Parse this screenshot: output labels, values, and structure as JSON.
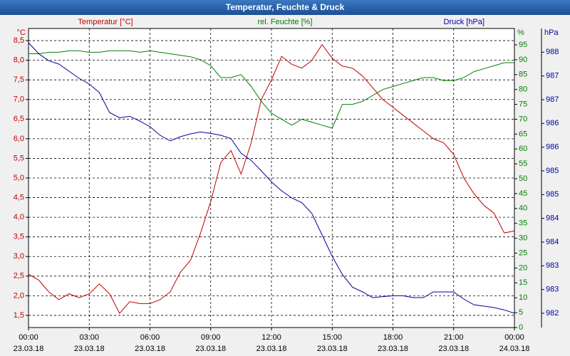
{
  "chart_data": {
    "type": "line",
    "title": "Temperatur, Feuchte & Druck",
    "x": [
      0,
      0.5,
      1,
      1.5,
      2,
      2.5,
      3,
      3.5,
      4,
      4.5,
      5,
      5.5,
      6,
      6.5,
      7,
      7.5,
      8,
      8.5,
      9,
      9.5,
      10,
      10.5,
      11,
      11.5,
      12,
      12.5,
      13,
      13.5,
      14,
      14.5,
      15,
      15.5,
      16,
      16.5,
      17,
      17.5,
      18,
      18.5,
      19,
      19.5,
      20,
      20.5,
      21,
      21.5,
      22,
      22.5,
      23,
      23.5,
      24
    ],
    "xlim": [
      0,
      24
    ],
    "xticks": [
      {
        "value": 0,
        "label": "00:00"
      },
      {
        "value": 3,
        "label": "03:00"
      },
      {
        "value": 6,
        "label": "06:00"
      },
      {
        "value": 9,
        "label": "09:00"
      },
      {
        "value": 12,
        "label": "12:00"
      },
      {
        "value": 15,
        "label": "15:00"
      },
      {
        "value": 18,
        "label": "18:00"
      },
      {
        "value": 21,
        "label": "21:00"
      },
      {
        "value": 24,
        "label": "00:00"
      }
    ],
    "xtick_dates": [
      "23.03.18",
      "23.03.18",
      "23.03.18",
      "23.03.18",
      "23.03.18",
      "23.03.18",
      "23.03.18",
      "23.03.18",
      "24.03.18"
    ],
    "ylim": [
      1.19,
      8.81
    ],
    "yticks": [
      {
        "value": 1.5,
        "label": "1,5"
      },
      {
        "value": 2,
        "label": "2,0"
      },
      {
        "value": 2.5,
        "label": "2,5"
      },
      {
        "value": 3,
        "label": "3,0"
      },
      {
        "value": 3.5,
        "label": "3,5"
      },
      {
        "value": 4,
        "label": "4,0"
      },
      {
        "value": 4.5,
        "label": "4,5"
      },
      {
        "value": 5,
        "label": "5,0"
      },
      {
        "value": 5.5,
        "label": "5,5"
      },
      {
        "value": 6,
        "label": "6,0"
      },
      {
        "value": 6.5,
        "label": "6,5"
      },
      {
        "value": 7,
        "label": "7,0"
      },
      {
        "value": 7.5,
        "label": "7,5"
      },
      {
        "value": 8,
        "label": "8,0"
      },
      {
        "value": 8.5,
        "label": "8,5"
      }
    ],
    "y_unit": "°C",
    "y2lim": [
      0,
      100.5
    ],
    "y2ticks": [
      0,
      5,
      10,
      15,
      20,
      25,
      30,
      35,
      40,
      45,
      50,
      55,
      60,
      65,
      70,
      75,
      80,
      85,
      90,
      95
    ],
    "y2_unit": "%",
    "y3lim": [
      981.8,
      988.1
    ],
    "y3ticks": [
      {
        "value": 982.1,
        "label": "982"
      },
      {
        "value": 982.6,
        "label": "983"
      },
      {
        "value": 983.1,
        "label": "983"
      },
      {
        "value": 983.6,
        "label": "984"
      },
      {
        "value": 984.1,
        "label": "984"
      },
      {
        "value": 984.6,
        "label": "985"
      },
      {
        "value": 985.1,
        "label": "985"
      },
      {
        "value": 985.6,
        "label": "986"
      },
      {
        "value": 986.1,
        "label": "986"
      },
      {
        "value": 986.6,
        "label": "987"
      },
      {
        "value": 987.1,
        "label": "987"
      },
      {
        "value": 987.6,
        "label": "988"
      }
    ],
    "y3_unit": "hPa",
    "grid": true,
    "series": [
      {
        "name": "Temperatur [°C]",
        "color": "#c00000",
        "axis": "y",
        "values": [
          2.55,
          2.4,
          2.1,
          1.9,
          2.05,
          1.95,
          2.05,
          2.3,
          2.05,
          1.55,
          1.85,
          1.8,
          1.8,
          1.9,
          2.1,
          2.6,
          2.9,
          3.6,
          4.4,
          5.4,
          5.7,
          5.1,
          5.9,
          7.0,
          7.5,
          8.1,
          7.9,
          7.8,
          8.0,
          8.4,
          8.05,
          7.85,
          7.8,
          7.6,
          7.3,
          7.0,
          6.8,
          6.6,
          6.4,
          6.2,
          6.0,
          5.9,
          5.6,
          5.0,
          4.6,
          4.3,
          4.1,
          3.6,
          3.65
        ]
      },
      {
        "name": "rel. Feuchte [%]",
        "color": "#008000",
        "axis": "y2",
        "values": [
          92,
          92,
          92.5,
          92.5,
          93,
          93,
          92.5,
          92.5,
          93,
          93,
          93,
          92.5,
          93,
          92.5,
          92,
          91.5,
          91,
          90,
          88,
          84,
          84,
          85,
          81,
          76,
          72,
          70,
          68,
          70,
          69,
          68,
          67,
          75,
          75,
          76,
          78,
          80,
          81,
          82,
          83,
          84,
          84,
          83,
          83,
          84,
          86,
          87,
          88,
          89,
          89
        ]
      },
      {
        "name": "Druck [hPa]",
        "color": "#0000a0",
        "axis": "y3",
        "values": [
          987.8,
          987.57,
          987.42,
          987.35,
          987.2,
          987.05,
          986.93,
          986.75,
          986.33,
          986.22,
          986.25,
          986.15,
          986.03,
          985.85,
          985.73,
          985.82,
          985.88,
          985.92,
          985.89,
          985.85,
          985.78,
          985.47,
          985.32,
          985.1,
          984.87,
          984.68,
          984.53,
          984.43,
          984.2,
          983.75,
          983.3,
          982.92,
          982.65,
          982.55,
          982.43,
          982.45,
          982.47,
          982.47,
          982.43,
          982.43,
          982.55,
          982.55,
          982.55,
          982.4,
          982.28,
          982.25,
          982.22,
          982.17,
          982.1
        ]
      }
    ]
  }
}
